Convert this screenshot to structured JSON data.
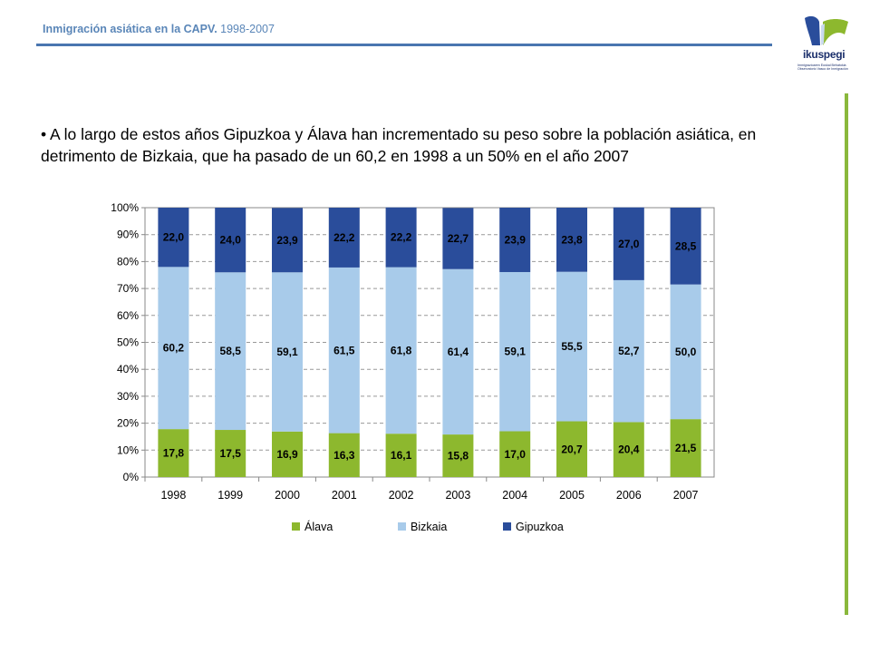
{
  "header": {
    "title": "Inmigración asiática  en la CAPV.",
    "year_range": "1998-2007"
  },
  "logo": {
    "name": "ikuspegi",
    "subtitle": "Immigrazioaren Euskal Behatokia Observatorio Vasco de Inmigración"
  },
  "colors": {
    "header_text": "#5a86b8",
    "header_rule": "#4a76b0",
    "side_bar": "#8ab83c",
    "alava": "#8db82e",
    "bizkaia": "#a8cbea",
    "gipuzkoa": "#2a4d9b"
  },
  "bullet_text": "• A lo largo de estos años Gipuzkoa y Álava han incrementado su peso sobre la población asiática, en detrimento de Bizkaia, que ha pasado de un 60,2 en 1998 a un 50% en el año 2007",
  "chart_data": {
    "type": "bar",
    "stacked": true,
    "percent_stacked": true,
    "categories": [
      "1998",
      "1999",
      "2000",
      "2001",
      "2002",
      "2003",
      "2004",
      "2005",
      "2006",
      "2007"
    ],
    "series": [
      {
        "name": "Álava",
        "color": "#8db82e",
        "values": [
          17.8,
          17.5,
          16.9,
          16.3,
          16.1,
          15.8,
          17.0,
          20.7,
          20.4,
          21.5
        ],
        "labels": [
          "17,8",
          "17,5",
          "16,9",
          "16,3",
          "16,1",
          "15,8",
          "17,0",
          "20,7",
          "20,4",
          "21,5"
        ]
      },
      {
        "name": "Bizkaia",
        "color": "#a8cbea",
        "values": [
          60.2,
          58.5,
          59.1,
          61.5,
          61.8,
          61.4,
          59.1,
          55.5,
          52.7,
          50.0
        ],
        "labels": [
          "60,2",
          "58,5",
          "59,1",
          "61,5",
          "61,8",
          "61,4",
          "59,1",
          "55,5",
          "52,7",
          "50,0"
        ]
      },
      {
        "name": "Gipuzkoa",
        "color": "#2a4d9b",
        "values": [
          22.0,
          24.0,
          23.9,
          22.2,
          22.2,
          22.7,
          23.9,
          23.8,
          27.0,
          28.5
        ],
        "labels": [
          "22,0",
          "24,0",
          "23,9",
          "22,2",
          "22,2",
          "22,7",
          "23,9",
          "23,8",
          "27,0",
          "28,5"
        ]
      }
    ],
    "y_ticks": [
      "0%",
      "10%",
      "20%",
      "30%",
      "40%",
      "50%",
      "60%",
      "70%",
      "80%",
      "90%",
      "100%"
    ],
    "ylim": [
      0,
      100
    ],
    "grid": true,
    "legend_placement": "bottom",
    "title": "",
    "xlabel": "",
    "ylabel": ""
  }
}
